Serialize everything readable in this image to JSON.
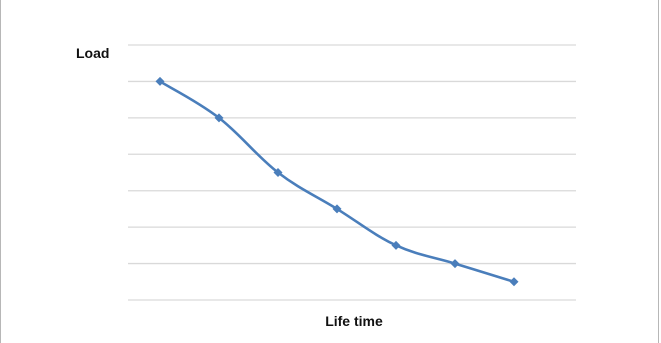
{
  "chart_data": {
    "type": "line",
    "title": "",
    "xlabel": "Life time",
    "ylabel": "Load",
    "x": [
      1,
      2,
      3,
      4,
      5,
      6,
      7
    ],
    "series": [
      {
        "values": [
          6,
          5,
          3.5,
          2.5,
          1.5,
          1,
          0.5
        ]
      }
    ],
    "ylim": [
      0,
      7
    ],
    "grid": true,
    "y_gridlines": [
      0,
      1,
      2,
      3,
      4,
      5,
      6,
      7
    ],
    "colors": {
      "line": "#4a7ebb",
      "grid": "#d9d9d9"
    }
  }
}
